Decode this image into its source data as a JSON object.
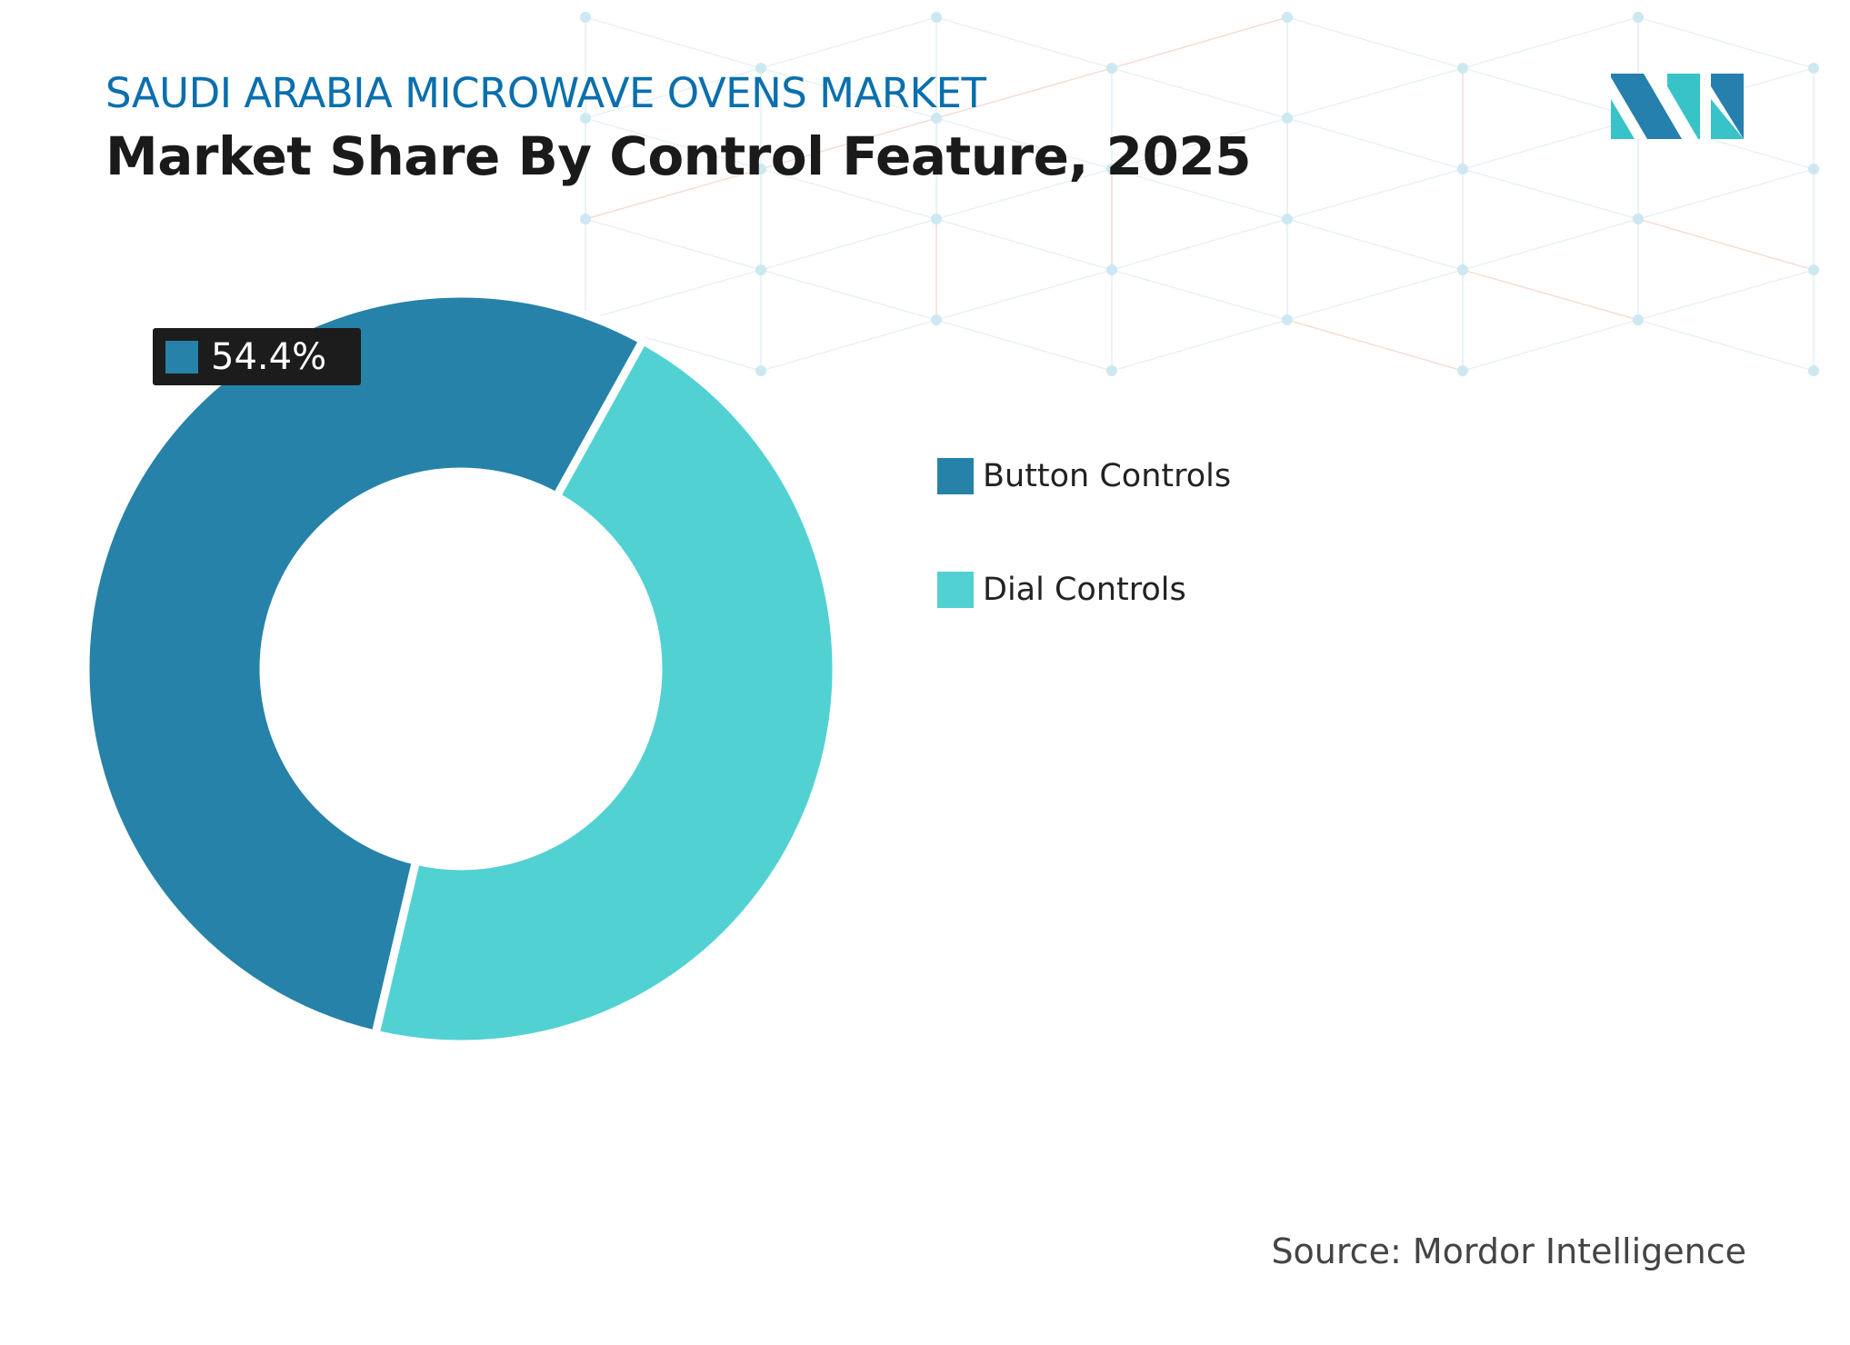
{
  "header": {
    "title": "SAUDI ARABIA MICROWAVE OVENS MARKET",
    "subtitle": "Market Share By Control Feature, 2025"
  },
  "source": "Source: Mordor Intelligence",
  "logo": {
    "text": "MI",
    "colors": [
      "#2580ad",
      "#38c3c8"
    ]
  },
  "chart_data": {
    "type": "pie",
    "variant": "donut",
    "categories": [
      "Button Controls",
      "Dial Controls"
    ],
    "values": [
      54.4,
      45.6
    ],
    "colors": [
      "#2682a8",
      "#52d1d3"
    ],
    "data_labels": [
      {
        "category": "Button Controls",
        "text": "54.4%"
      }
    ],
    "legend": "right"
  }
}
